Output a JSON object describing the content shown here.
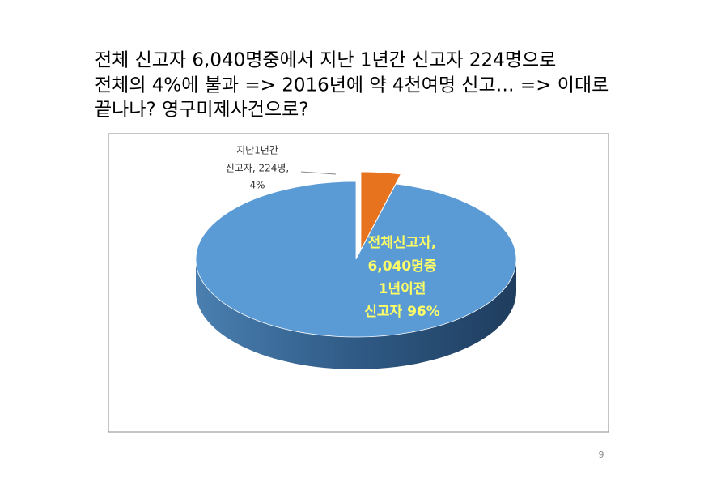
{
  "slide": {
    "title_lines": [
      "전체 신고자 6,040명중에서 지난 1년간 신고자 224명으로",
      "전체의 4%에 불과  => 2016년에 약 4천여명 신고…  => 이대로",
      "끝나나? 영구미제사건으로?"
    ],
    "page_number": "9"
  },
  "chart_data": {
    "type": "pie",
    "three_d": true,
    "data_labels": [
      [
        "지난1년간",
        "신고자, 224명,"
      ],
      [
        "전체신고자,",
        "6,040명중",
        "1년이전",
        "신고자"
      ]
    ],
    "values": [
      4,
      96
    ],
    "value_labels": [
      "4%",
      "96%"
    ],
    "colors": [
      "#e8731f",
      "#5b9bd5"
    ],
    "exploded": [
      true,
      false
    ]
  }
}
